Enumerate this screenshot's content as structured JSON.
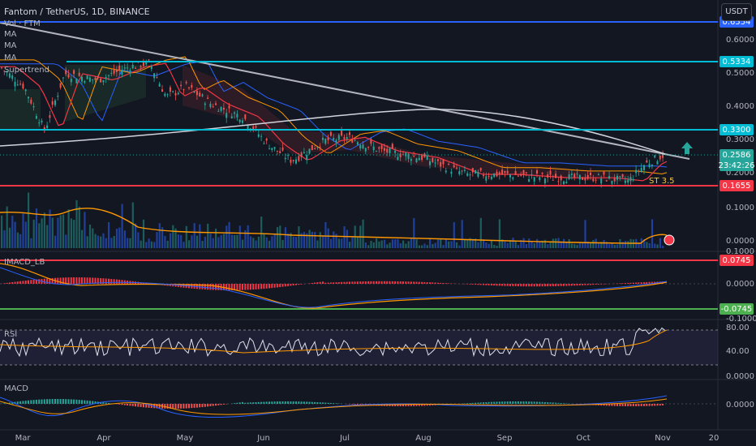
{
  "header": {
    "symbol_title": "Fantom / TetherUS, 1D, BINANCE",
    "currency_button": "USDT"
  },
  "overlays": {
    "vol": "Vol · FTM",
    "ma1": "MA",
    "ma2": "MA",
    "ma3": "MA",
    "supertrend": "Supertrend",
    "st_label": "ST 3.5"
  },
  "panes": {
    "imacd": "IMACD_LB",
    "rsi": "RSI",
    "macd": "MACD"
  },
  "price_axis": [
    "0.6000",
    "0.5000",
    "0.4000",
    "0.3000",
    "0.2000",
    "0.1000",
    "0.0000"
  ],
  "price_badges": {
    "top": "0.6554",
    "cyan_upper": "0.5334",
    "cyan_lower": "0.3300",
    "current": "0.2586",
    "countdown": "23:42:26",
    "red": "0.1655"
  },
  "imacd_axis": {
    "top": "0.1000",
    "zero": "0.0000",
    "bottom": "-0.1000"
  },
  "imacd_badges": {
    "upper": "0.0745",
    "lower": "-0.0745"
  },
  "rsi_axis": {
    "high": "80.00",
    "mid": "40.00",
    "low": "0.0000"
  },
  "macd_axis": {
    "zero": "0.0000"
  },
  "time_axis": [
    "Mar",
    "Apr",
    "May",
    "Jun",
    "Jul",
    "Aug",
    "Sep",
    "Oct",
    "Nov",
    "20"
  ],
  "colors": {
    "bg": "#131722",
    "blue_line": "#2962ff",
    "cyan_line": "#00bcd4",
    "red_line": "#f23645",
    "green_line": "#4caf50",
    "trend_line": "#b2b5be",
    "price_label": "#2962ff"
  }
}
